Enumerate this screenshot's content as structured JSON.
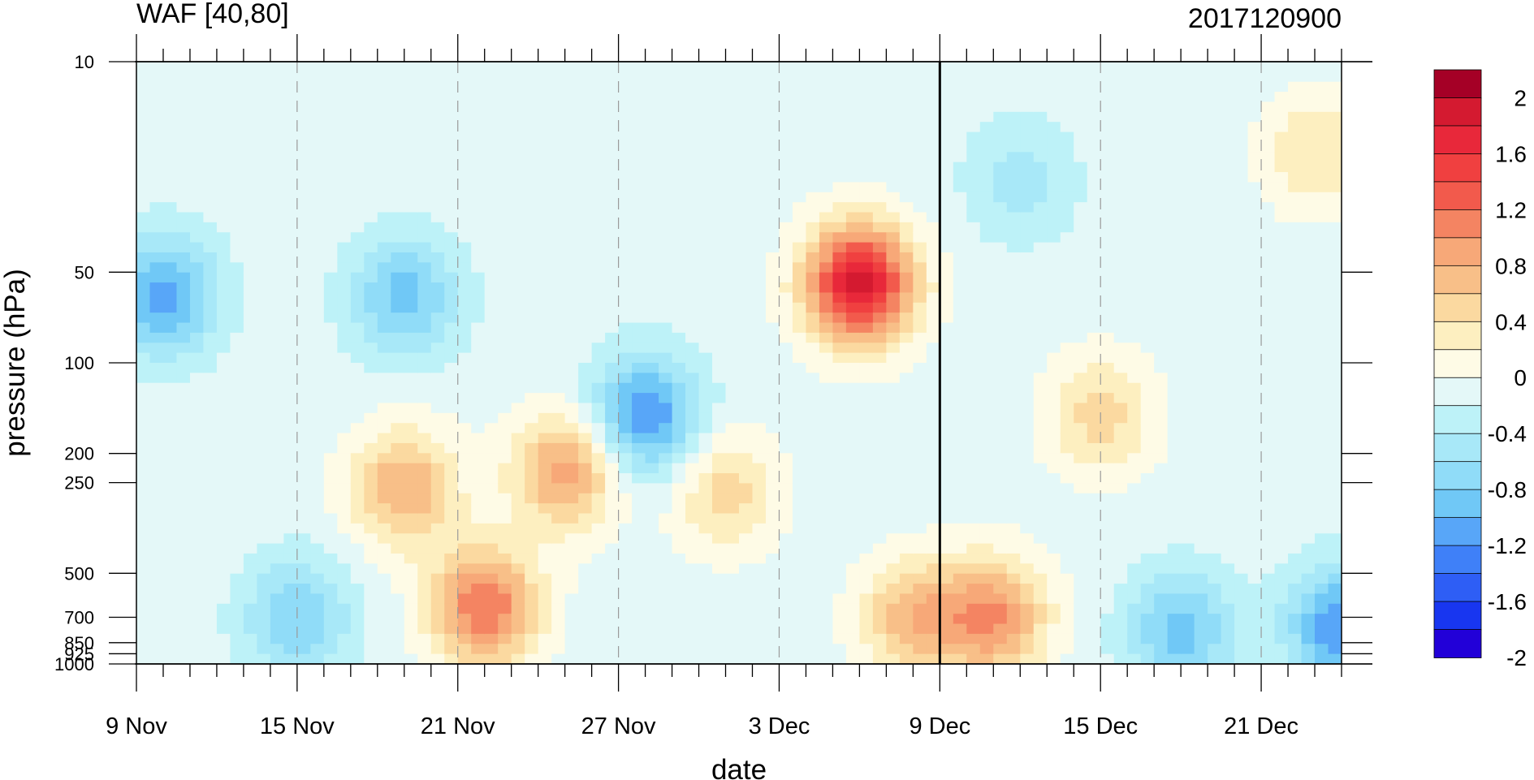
{
  "chart_data": {
    "type": "heatmap",
    "title_left": "WAF [40,80]",
    "title_right": "2017120900",
    "xlabel": "date",
    "ylabel": "pressure (hPa)",
    "x_tick_labels": [
      "9 Nov",
      "15 Nov",
      "21 Nov",
      "27 Nov",
      "3 Dec",
      "9 Dec",
      "15 Dec",
      "21 Dec"
    ],
    "x_range": [
      "2017-11-09",
      "2017-12-24"
    ],
    "x_minor_step_days": 1,
    "y_tick_labels": [
      "10",
      "50",
      "100",
      "200",
      "250",
      "500",
      "700",
      "850",
      "925",
      "1000"
    ],
    "y_range_hpa": [
      1000,
      10
    ],
    "y_scale": "log",
    "marked_date": "9 Dec",
    "grid_x": "dashed vertical lines at date labels",
    "colorbar": {
      "labels": [
        "2",
        "1.6",
        "1.2",
        "0.8",
        "0.4",
        "0",
        "-0.4",
        "-0.8",
        "-1.2",
        "-1.6",
        "-2"
      ],
      "levels": [
        -2.2,
        -2.0,
        -1.8,
        -1.6,
        -1.4,
        -1.2,
        -1.0,
        -0.8,
        -0.6,
        -0.4,
        -0.2,
        0.0,
        0.2,
        0.4,
        0.6,
        0.8,
        1.0,
        1.2,
        1.4,
        1.6,
        1.8,
        2.0
      ],
      "colors": [
        "#2200d8",
        "#1836f0",
        "#2e5ef5",
        "#3f80f8",
        "#58a6f8",
        "#70c8f6",
        "#90dcf8",
        "#a8e8f8",
        "#bdf2f8",
        "#e4f8f8",
        "#fefbe6",
        "#fdefc0",
        "#fbd9a0",
        "#f8bf88",
        "#f7a878",
        "#f48462",
        "#f25a4c",
        "#f04040",
        "#e8283a",
        "#d41a30",
        "#a50026"
      ]
    },
    "features": [
      {
        "date": "2017-12-06",
        "pressure_hpa": 55,
        "value": 2.0
      },
      {
        "date": "2017-11-22",
        "pressure_hpa": 650,
        "value": 1.3
      },
      {
        "date": "2017-11-25",
        "pressure_hpa": 230,
        "value": 1.0
      },
      {
        "date": "2017-11-19",
        "pressure_hpa": 260,
        "value": 0.9
      },
      {
        "date": "2017-12-11",
        "pressure_hpa": 700,
        "value": 1.1
      },
      {
        "date": "2017-12-08",
        "pressure_hpa": 700,
        "value": 0.8
      },
      {
        "date": "2017-12-15",
        "pressure_hpa": 150,
        "value": 0.6
      },
      {
        "date": "2017-12-23",
        "pressure_hpa": 20,
        "value": 0.5
      },
      {
        "date": "2017-12-01",
        "pressure_hpa": 270,
        "value": 0.6
      },
      {
        "date": "2017-11-10",
        "pressure_hpa": 60,
        "value": -1.0
      },
      {
        "date": "2017-11-28",
        "pressure_hpa": 150,
        "value": -1.1
      },
      {
        "date": "2017-11-19",
        "pressure_hpa": 60,
        "value": -0.8
      },
      {
        "date": "2017-12-18",
        "pressure_hpa": 780,
        "value": -0.8
      },
      {
        "date": "2017-12-24",
        "pressure_hpa": 750,
        "value": -1.1
      },
      {
        "date": "2017-11-15",
        "pressure_hpa": 700,
        "value": -0.7
      },
      {
        "date": "2017-12-12",
        "pressure_hpa": 25,
        "value": -0.4
      }
    ]
  }
}
